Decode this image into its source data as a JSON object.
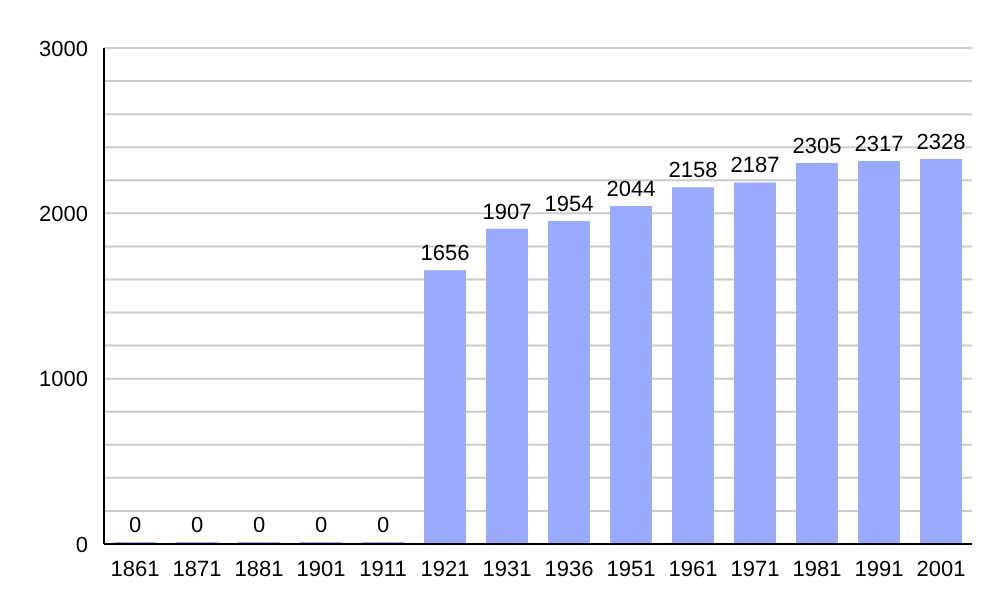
{
  "chart_data": {
    "type": "bar",
    "categories": [
      "1861",
      "1871",
      "1881",
      "1901",
      "1911",
      "1921",
      "1931",
      "1936",
      "1951",
      "1961",
      "1971",
      "1981",
      "1991",
      "2001"
    ],
    "values": [
      0,
      0,
      0,
      0,
      0,
      1656,
      1907,
      1954,
      2044,
      2158,
      2187,
      2305,
      2317,
      2328
    ],
    "color": "#99aaff",
    "data_labels": true,
    "grid": "y",
    "ylim": [
      0,
      3000
    ],
    "yticks": [
      0,
      {
        "value": 200,
        "label": null
      },
      {
        "value": 400,
        "label": null
      },
      {
        "value": 600,
        "label": null
      },
      {
        "value": 800,
        "label": null
      },
      1000,
      {
        "value": 1200,
        "label": null
      },
      {
        "value": 1400,
        "label": null
      },
      {
        "value": 1600,
        "label": null
      },
      {
        "value": 1800,
        "label": null
      },
      2000,
      {
        "value": 2200,
        "label": null
      },
      {
        "value": 2400,
        "label": null
      },
      {
        "value": 2600,
        "label": null
      },
      {
        "value": 2800,
        "label": null
      },
      3000
    ]
  }
}
